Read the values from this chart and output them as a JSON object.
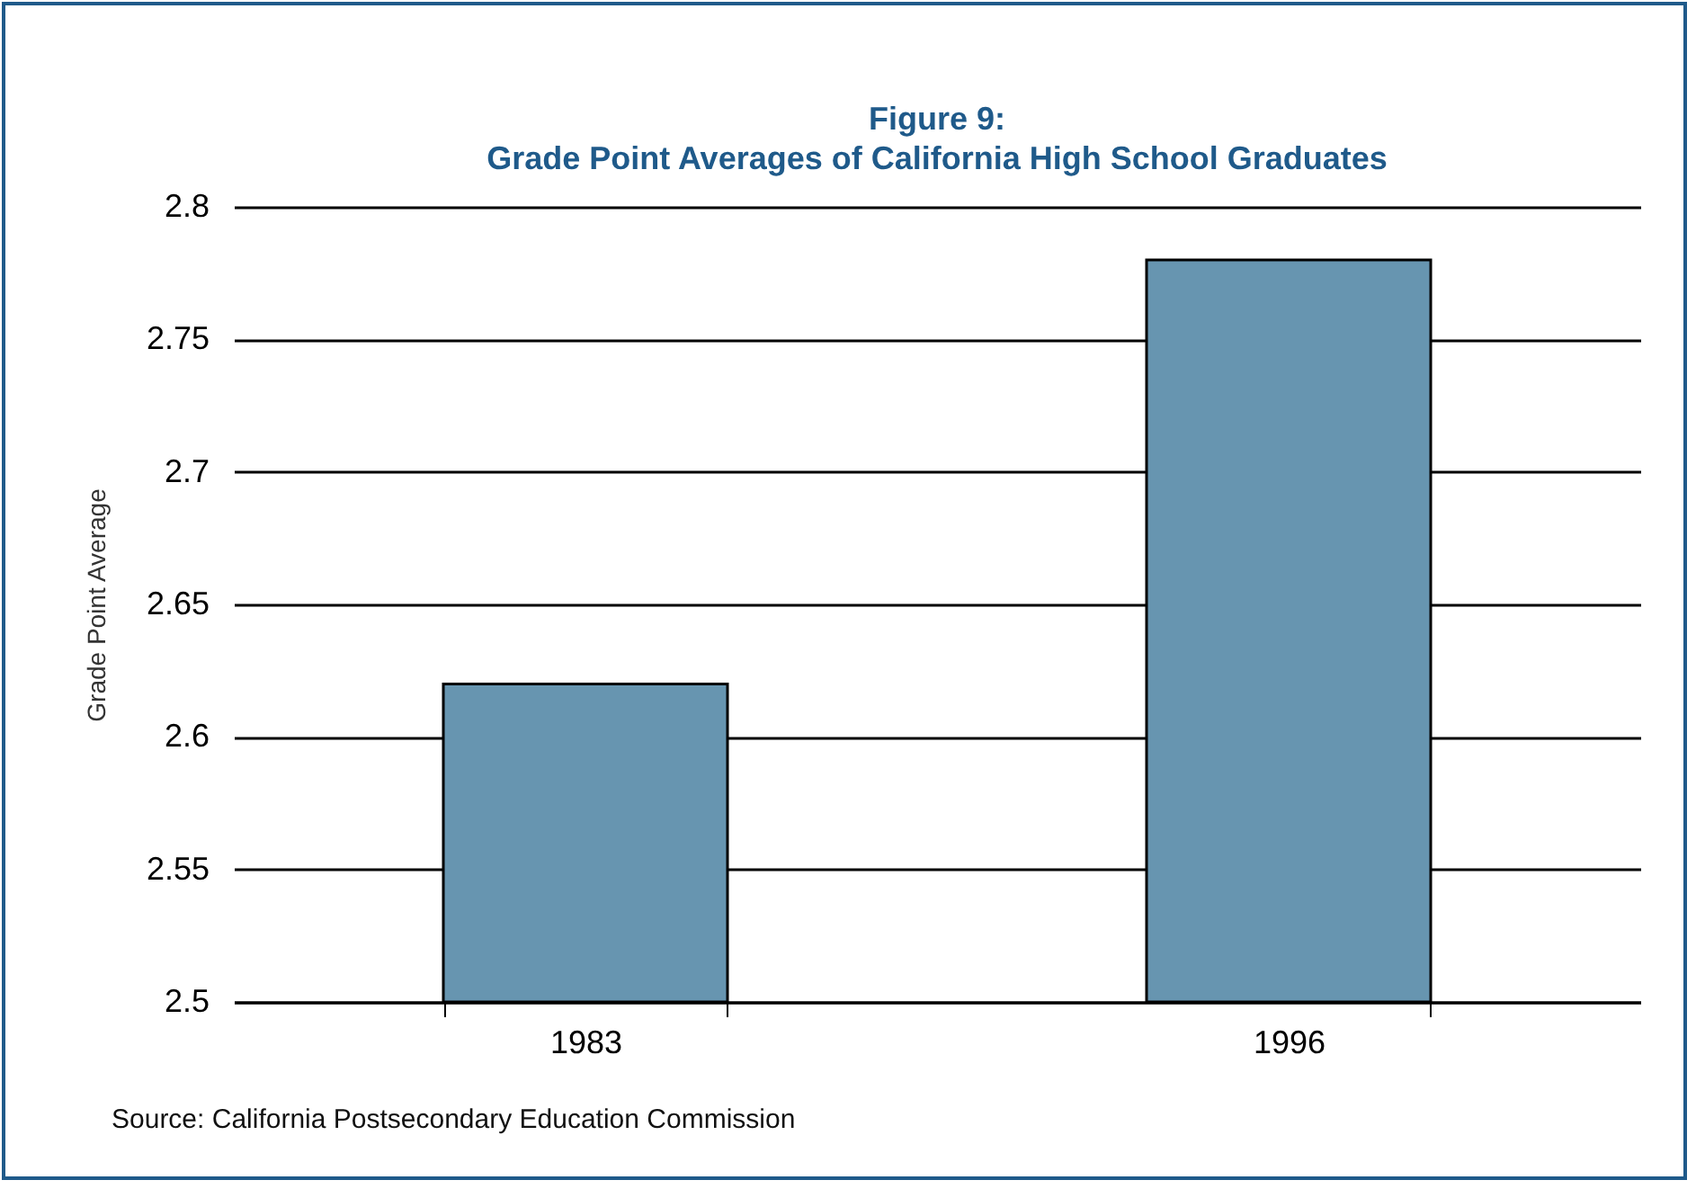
{
  "chart_data": {
    "type": "bar",
    "title": "Figure 9:",
    "subtitle": "Grade Point Averages of California High School Graduates",
    "ylabel": "Grade Point Average",
    "categories": [
      "1983",
      "1996"
    ],
    "values": [
      2.62,
      2.78
    ],
    "color": "#6795b0",
    "ylim": [
      2.5,
      2.8
    ],
    "yticks": [
      2.5,
      2.55,
      2.6,
      2.65,
      2.7,
      2.75,
      2.8
    ],
    "grid": "y",
    "annotations": [
      "Source:  California Postsecondary Education Commission"
    ]
  }
}
